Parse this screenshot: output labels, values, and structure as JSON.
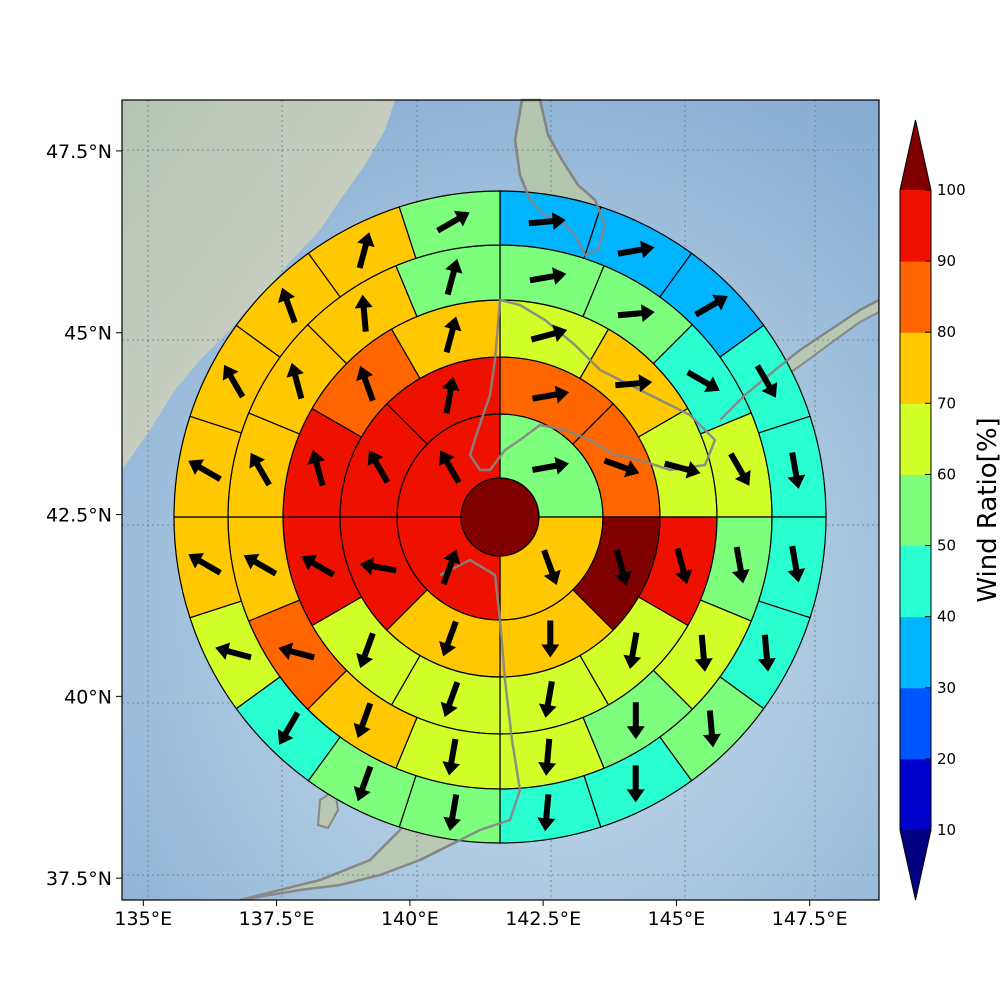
{
  "chart_data": {
    "type": "heatmap",
    "subtype": "polar-sector wind map",
    "x_ticks": [
      "135°E",
      "137.5°E",
      "140°E",
      "142.5°E",
      "145°E",
      "147.5°E"
    ],
    "x_tick_values": [
      135,
      137.5,
      140,
      142.5,
      145,
      147.5
    ],
    "y_ticks": [
      "47.5°N",
      "45°N",
      "42.5°N",
      "40°N",
      "37.5°N"
    ],
    "y_tick_values": [
      47.5,
      45,
      42.5,
      40,
      37.5
    ],
    "xlim": [
      134.6,
      148.8
    ],
    "ylim": [
      37.2,
      48.2
    ],
    "grid": true,
    "colorbar": {
      "label": "Wind Ratio[%]",
      "ticks": [
        "10",
        "20",
        "30",
        "40",
        "50",
        "60",
        "70",
        "80",
        "90",
        "100"
      ],
      "tick_values": [
        10,
        20,
        30,
        40,
        50,
        60,
        70,
        80,
        90,
        100
      ],
      "bin_colors": [
        "#0000cd",
        "#0055ff",
        "#00b4ff",
        "#2affd2",
        "#7dff7d",
        "#d2ff2a",
        "#ffc800",
        "#ff6600",
        "#ee1100"
      ],
      "under_color": "#000080",
      "over_color": "#800000",
      "extend": "both",
      "orientation": "vertical",
      "position": "right"
    },
    "center_value": 100,
    "rings": [
      {
        "sectors": 4,
        "values": [
          55,
          70,
          90,
          90
        ],
        "directions": [
          80,
          160,
          20,
          330
        ]
      },
      {
        "sectors": 8,
        "values": [
          80,
          80,
          100,
          70,
          70,
          90,
          90,
          90
        ],
        "directions": [
          80,
          110,
          165,
          180,
          200,
          280,
          330,
          10
        ]
      },
      {
        "sectors": 12,
        "values": [
          60,
          70,
          60,
          90,
          60,
          60,
          60,
          60,
          90,
          90,
          80,
          70
        ],
        "directions": [
          75,
          85,
          105,
          165,
          190,
          190,
          200,
          200,
          300,
          345,
          340,
          15
        ]
      },
      {
        "sectors": 16,
        "values": [
          50,
          50,
          40,
          60,
          50,
          60,
          50,
          60,
          60,
          70,
          80,
          70,
          70,
          70,
          70,
          50
        ],
        "directions": [
          80,
          85,
          120,
          150,
          170,
          175,
          180,
          185,
          190,
          200,
          285,
          300,
          330,
          345,
          355,
          15
        ]
      },
      {
        "sectors": 20,
        "values": [
          30,
          30,
          30,
          40,
          40,
          40,
          40,
          50,
          40,
          40,
          50,
          50,
          40,
          60,
          70,
          70,
          70,
          70,
          70,
          50
        ],
        "directions": [
          85,
          80,
          60,
          150,
          170,
          170,
          175,
          175,
          180,
          185,
          190,
          200,
          210,
          285,
          300,
          300,
          330,
          340,
          15,
          60
        ]
      }
    ]
  }
}
